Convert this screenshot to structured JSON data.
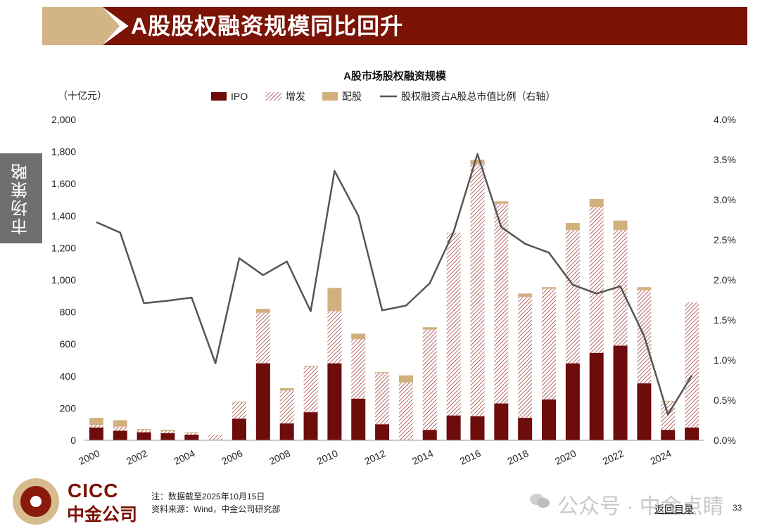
{
  "page": {
    "title": "A股股权融资规模同比回升",
    "side_tab": "市场策略",
    "note_line1": "注：数据截至2025年10月15日",
    "note_line2": "资料来源：Wind，中金公司研究部",
    "logo_en": "CICC",
    "logo_cn": "中金公司",
    "watermark": "公众号 · 中金点睛",
    "back_link": "返回目录",
    "page_number": "33"
  },
  "chart_data": {
    "type": "bar",
    "title": "A股市场股权融资规模",
    "ylabel_left": "（十亿元）",
    "categories": [
      "2000",
      "2001",
      "2002",
      "2003",
      "2004",
      "2005",
      "2006",
      "2007",
      "2008",
      "2009",
      "2010",
      "2011",
      "2012",
      "2013",
      "2014",
      "2015",
      "2016",
      "2017",
      "2018",
      "2019",
      "2020",
      "2021",
      "2022",
      "2023",
      "2024",
      "2025"
    ],
    "x_tick_labels": [
      "2000",
      "2002",
      "2004",
      "2006",
      "2008",
      "2010",
      "2012",
      "2014",
      "2016",
      "2018",
      "2020",
      "2022",
      "2024"
    ],
    "y_left_ticks": [
      "0",
      "200",
      "400",
      "600",
      "800",
      "1,000",
      "1,200",
      "1,400",
      "1,600",
      "1,800",
      "2,000"
    ],
    "y_left_lim": [
      0,
      2000
    ],
    "y_right_ticks": [
      "0.0%",
      "0.5%",
      "1.0%",
      "1.5%",
      "2.0%",
      "2.5%",
      "3.0%",
      "3.5%",
      "4.0%"
    ],
    "y_right_lim": [
      0,
      4.0
    ],
    "legend_position": "top",
    "stacked": true,
    "series": [
      {
        "name": "IPO",
        "kind": "bar",
        "color": "#6e0b0b",
        "values": [
          80,
          60,
          50,
          45,
          35,
          0,
          135,
          480,
          105,
          175,
          480,
          260,
          100,
          0,
          65,
          155,
          150,
          230,
          140,
          255,
          480,
          545,
          590,
          355,
          65,
          80
        ]
      },
      {
        "name": "增发",
        "kind": "bar",
        "pattern": "hatch",
        "color": "#8b1a1a",
        "values": [
          15,
          25,
          15,
          12,
          10,
          35,
          100,
          315,
          205,
          285,
          325,
          370,
          320,
          360,
          625,
          1140,
          1570,
          1245,
          755,
          690,
          830,
          910,
          720,
          580,
          175,
          780
        ]
      },
      {
        "name": "配股",
        "kind": "bar",
        "color": "#d2b07e",
        "values": [
          45,
          40,
          5,
          8,
          5,
          0,
          5,
          25,
          15,
          5,
          145,
          35,
          5,
          45,
          15,
          0,
          30,
          15,
          20,
          10,
          45,
          50,
          60,
          20,
          5,
          0
        ]
      },
      {
        "name": "股权融资占A股总市值比例（右轴）",
        "kind": "line",
        "axis": "right",
        "color": "#555555",
        "values": [
          2.72,
          2.59,
          1.71,
          1.74,
          1.78,
          0.96,
          2.27,
          2.06,
          2.23,
          1.61,
          3.36,
          2.8,
          1.62,
          1.68,
          1.96,
          2.6,
          3.57,
          2.66,
          2.45,
          2.34,
          1.94,
          1.83,
          1.92,
          1.3,
          0.32,
          0.81
        ]
      }
    ]
  }
}
